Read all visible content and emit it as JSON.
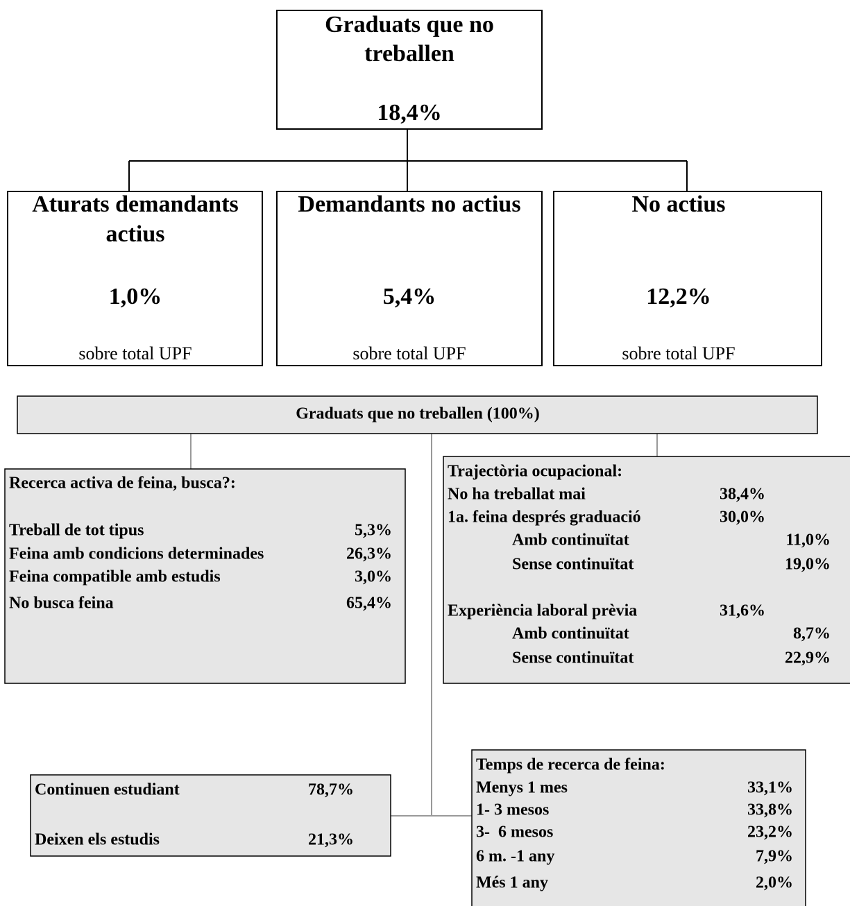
{
  "top": {
    "title_lines": [
      "Graduats que no",
      "treballen"
    ],
    "value": "18,4%"
  },
  "groups": [
    {
      "title_lines": [
        "Aturats demandants",
        "actius"
      ],
      "value": "1,0%",
      "note": "sobre total UPF"
    },
    {
      "title_lines": [
        "Demandants no actius"
      ],
      "value": "5,4%",
      "note": "sobre total UPF"
    },
    {
      "title_lines": [
        "No actius"
      ],
      "value": "12,2%",
      "note": "sobre total UPF"
    }
  ],
  "panel": {
    "title": "Graduats que no treballen (100%)"
  },
  "search": {
    "title": "Recerca activa de feina, busca?:",
    "rows": [
      {
        "label": "Treball de tot tipus",
        "value": "5,3%"
      },
      {
        "label": "Feina amb condicions determinades",
        "value": "26,3%"
      },
      {
        "label": "Feina compatible amb estudis",
        "value": "3,0%"
      },
      {
        "label": "No busca feina",
        "value": "65,4%"
      }
    ]
  },
  "trajectory": {
    "title": "Trajectòria ocupacional:",
    "rows": [
      {
        "label": "No ha treballat mai",
        "value": "38,4%",
        "sub": []
      },
      {
        "label": "1a. feina després graduació",
        "value": "30,0%",
        "sub": [
          {
            "label": "Amb continuïtat",
            "value": "11,0%"
          },
          {
            "label": "Sense continuïtat",
            "value": "19,0%"
          }
        ]
      },
      {
        "label": "Experiència laboral prèvia",
        "value": "31,6%",
        "sub": [
          {
            "label": "Amb continuïtat",
            "value": "8,7%"
          },
          {
            "label": "Sense continuïtat",
            "value": "22,9%"
          }
        ]
      }
    ]
  },
  "studies": {
    "rows": [
      {
        "label": "Continuen estudiant",
        "value": "78,7%"
      },
      {
        "label": "Deixen els estudis",
        "value": "21,3%"
      }
    ]
  },
  "time": {
    "title": "Temps de recerca de feina:",
    "rows": [
      {
        "label": "Menys 1 mes",
        "value": "33,1%"
      },
      {
        "label": "1- 3 mesos",
        "value": "33,8%"
      },
      {
        "label": "3-  6 mesos",
        "value": "23,2%"
      },
      {
        "label": "6 m. -1 any",
        "value": "7,9%"
      },
      {
        "label": "Més 1 any",
        "value": "2,0%"
      }
    ]
  }
}
